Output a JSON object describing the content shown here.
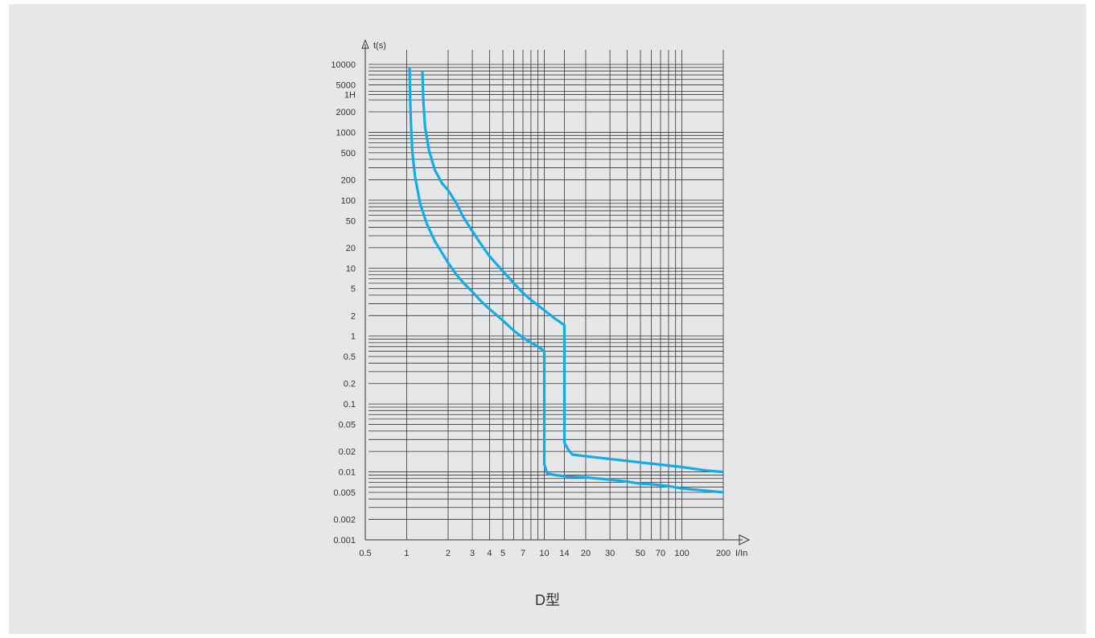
{
  "caption": "D型",
  "colors": {
    "background": "#e6e7e9",
    "grid": "#333333",
    "curve": "#14ace6",
    "text": "#333333"
  },
  "chart_data": {
    "type": "line",
    "title": "",
    "xlabel": "I/In",
    "ylabel": "t(s)",
    "x_scale": "log",
    "y_scale": "log",
    "xlim": [
      0.5,
      200
    ],
    "ylim": [
      0.001,
      10000
    ],
    "grid": true,
    "legend": "none",
    "x_ticks": [
      {
        "value": 0.5,
        "label": "0.5"
      },
      {
        "value": 1,
        "label": "1"
      },
      {
        "value": 2,
        "label": "2"
      },
      {
        "value": 3,
        "label": "3"
      },
      {
        "value": 4,
        "label": "4"
      },
      {
        "value": 5,
        "label": "5"
      },
      {
        "value": 7,
        "label": "7"
      },
      {
        "value": 10,
        "label": "10"
      },
      {
        "value": 14,
        "label": "14"
      },
      {
        "value": 20,
        "label": "20"
      },
      {
        "value": 30,
        "label": "30"
      },
      {
        "value": 50,
        "label": "50"
      },
      {
        "value": 70,
        "label": "70"
      },
      {
        "value": 100,
        "label": "100"
      },
      {
        "value": 200,
        "label": "200"
      }
    ],
    "x_grid": [
      1,
      2,
      3,
      4,
      5,
      6,
      7,
      8,
      9,
      10,
      14,
      20,
      30,
      40,
      50,
      60,
      70,
      80,
      90,
      100,
      200
    ],
    "y_ticks": [
      {
        "value": 10000,
        "label": "10000"
      },
      {
        "value": 5000,
        "label": "5000"
      },
      {
        "value": 3600,
        "label": "1H"
      },
      {
        "value": 2000,
        "label": "2000"
      },
      {
        "value": 1000,
        "label": "1000"
      },
      {
        "value": 500,
        "label": "500"
      },
      {
        "value": 200,
        "label": "200"
      },
      {
        "value": 100,
        "label": "100"
      },
      {
        "value": 50,
        "label": "50"
      },
      {
        "value": 20,
        "label": "20"
      },
      {
        "value": 10,
        "label": "10"
      },
      {
        "value": 5,
        "label": "5"
      },
      {
        "value": 2,
        "label": "2"
      },
      {
        "value": 1,
        "label": "1"
      },
      {
        "value": 0.5,
        "label": "0.5"
      },
      {
        "value": 0.2,
        "label": "0.2"
      },
      {
        "value": 0.1,
        "label": "0.1"
      },
      {
        "value": 0.05,
        "label": "0.05"
      },
      {
        "value": 0.02,
        "label": "0.02"
      },
      {
        "value": 0.01,
        "label": "0.01"
      },
      {
        "value": 0.005,
        "label": "0.005"
      },
      {
        "value": 0.002,
        "label": "0.002"
      },
      {
        "value": 0.001,
        "label": "0.001"
      }
    ],
    "y_grid": [
      10000,
      9000,
      8000,
      7000,
      6000,
      5000,
      4000,
      3600,
      3000,
      2000,
      1000,
      900,
      800,
      700,
      600,
      500,
      400,
      300,
      200,
      100,
      90,
      80,
      70,
      60,
      50,
      40,
      30,
      20,
      10,
      9,
      8,
      7,
      6,
      5,
      4,
      3,
      2,
      1,
      0.9,
      0.8,
      0.7,
      0.6,
      0.5,
      0.4,
      0.3,
      0.2,
      0.1,
      0.09,
      0.08,
      0.07,
      0.06,
      0.05,
      0.04,
      0.03,
      0.02,
      0.01,
      0.009,
      0.008,
      0.007,
      0.006,
      0.005,
      0.004,
      0.003,
      0.002,
      0.001
    ],
    "series": [
      {
        "points": [
          [
            1.05,
            9000
          ],
          [
            1.06,
            3000
          ],
          [
            1.08,
            1000
          ],
          [
            1.1,
            500
          ],
          [
            1.15,
            220
          ],
          [
            1.25,
            90
          ],
          [
            1.4,
            45
          ],
          [
            1.6,
            25
          ],
          [
            1.8,
            17
          ],
          [
            2,
            12
          ],
          [
            2.3,
            8
          ],
          [
            2.6,
            6
          ],
          [
            3,
            4.5
          ],
          [
            3.5,
            3.2
          ],
          [
            4,
            2.5
          ],
          [
            5,
            1.7
          ],
          [
            6,
            1.2
          ],
          [
            7,
            0.95
          ],
          [
            8,
            0.8
          ],
          [
            9,
            0.7
          ],
          [
            10,
            0.6
          ],
          [
            10,
            0.013
          ],
          [
            10.5,
            0.0095
          ],
          [
            12,
            0.009
          ],
          [
            15,
            0.0085
          ],
          [
            20,
            0.0083
          ],
          [
            30,
            0.0077
          ],
          [
            40,
            0.0072
          ],
          [
            50,
            0.0067
          ],
          [
            60,
            0.0066
          ],
          [
            80,
            0.0062
          ],
          [
            100,
            0.0057
          ],
          [
            150,
            0.0053
          ],
          [
            200,
            0.005
          ]
        ]
      },
      {
        "points": [
          [
            1.3,
            8000
          ],
          [
            1.32,
            3000
          ],
          [
            1.36,
            1200
          ],
          [
            1.45,
            550
          ],
          [
            1.6,
            280
          ],
          [
            1.8,
            180
          ],
          [
            2,
            140
          ],
          [
            2.3,
            90
          ],
          [
            2.6,
            55
          ],
          [
            3,
            35
          ],
          [
            3.5,
            22
          ],
          [
            4,
            15
          ],
          [
            5,
            9
          ],
          [
            6,
            6
          ],
          [
            7,
            4.3
          ],
          [
            8,
            3.4
          ],
          [
            10,
            2.4
          ],
          [
            12,
            1.8
          ],
          [
            14,
            1.45
          ],
          [
            14,
            0.027
          ],
          [
            15,
            0.021
          ],
          [
            16,
            0.018
          ],
          [
            20,
            0.017
          ],
          [
            30,
            0.0155
          ],
          [
            40,
            0.0145
          ],
          [
            50,
            0.0138
          ],
          [
            70,
            0.0128
          ],
          [
            100,
            0.0118
          ],
          [
            150,
            0.0105
          ],
          [
            200,
            0.01
          ]
        ]
      }
    ]
  }
}
